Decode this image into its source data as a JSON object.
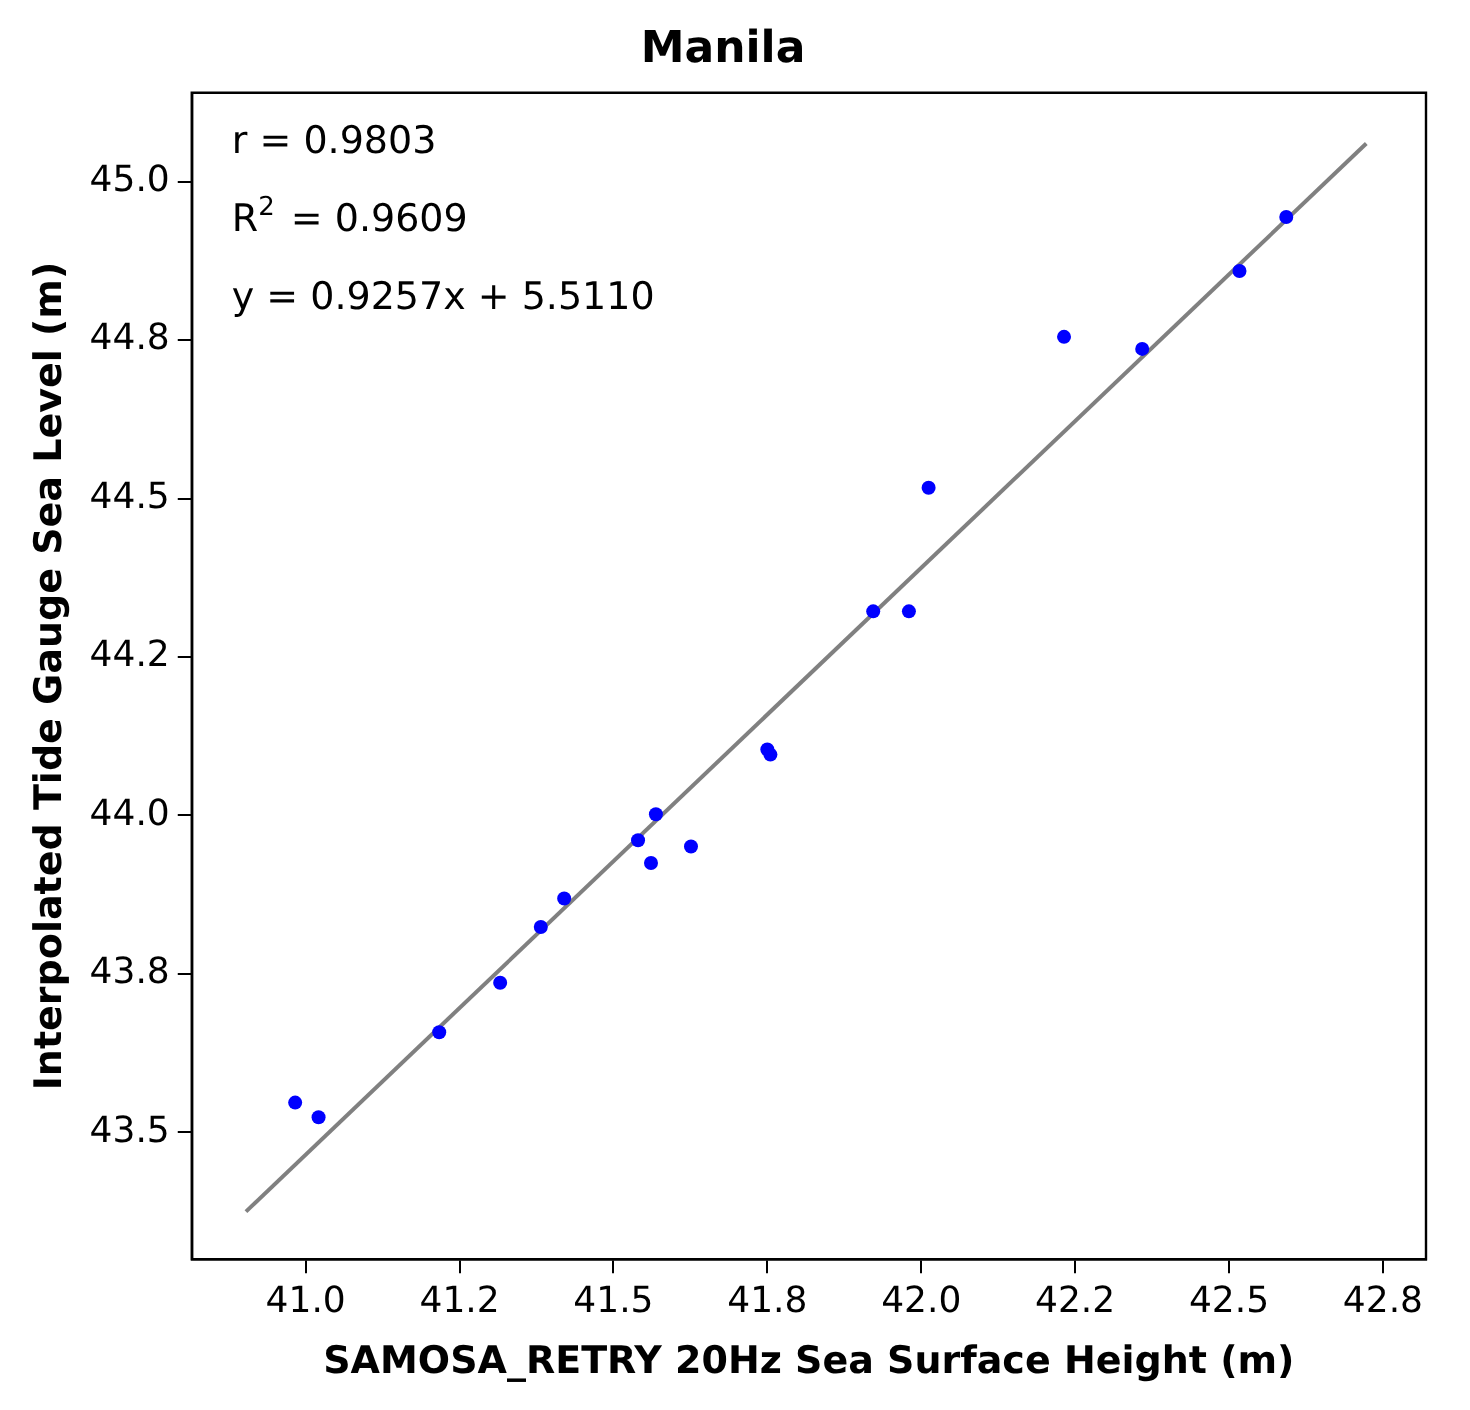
{
  "chart_data": {
    "type": "scatter",
    "title": "Manila",
    "xlabel": "SAMOSA_RETRY 20Hz Sea Surface Height (m)",
    "ylabel": "Interpolated Tide Gauge Sea Level (m)",
    "annotations": [
      "r = 0.9803",
      "R$^{2}$ = 0.9609",
      "y = 0.9257x + 5.5110"
    ],
    "series": [
      {
        "type": "scatter",
        "color": "#0000ff",
        "marker": "circle",
        "x": [
          40.983,
          41.021,
          41.217,
          41.316,
          41.382,
          41.42,
          41.54,
          41.561,
          41.569,
          41.626,
          41.75,
          41.755,
          41.922,
          41.98,
          42.012,
          42.232,
          42.359,
          42.517,
          42.593
        ],
        "values": [
          43.547,
          43.524,
          43.658,
          43.736,
          43.824,
          43.869,
          43.961,
          43.925,
          44.002,
          43.951,
          44.104,
          44.096,
          44.322,
          44.322,
          44.517,
          44.755,
          44.736,
          44.859,
          44.944
        ]
      },
      {
        "type": "line",
        "color": "#808080",
        "marker": "none",
        "line_style": "solid",
        "x": [
          40.903,
          42.723
        ],
        "values": [
          43.375,
          45.06
        ]
      }
    ],
    "xlim": [
      40.815,
      42.82
    ],
    "ylim": [
      43.3,
      45.14
    ],
    "xticks": [
      {
        "value": 41.0,
        "label": "41.0"
      },
      {
        "value": 41.25,
        "label": "41.2"
      },
      {
        "value": 41.5,
        "label": "41.5"
      },
      {
        "value": 41.75,
        "label": "41.8"
      },
      {
        "value": 42.0,
        "label": "42.0"
      },
      {
        "value": 42.25,
        "label": "42.2"
      },
      {
        "value": 42.5,
        "label": "42.5"
      },
      {
        "value": 42.75,
        "label": "42.8"
      }
    ],
    "yticks": [
      {
        "value": 43.5,
        "label": "43.5"
      },
      {
        "value": 43.75,
        "label": "43.8"
      },
      {
        "value": 44.0,
        "label": "44.0"
      },
      {
        "value": 44.25,
        "label": "44.2"
      },
      {
        "value": 44.5,
        "label": "44.5"
      },
      {
        "value": 44.75,
        "label": "44.8"
      },
      {
        "value": 45.0,
        "label": "45.0"
      }
    ],
    "grid": false,
    "legend": false
  }
}
